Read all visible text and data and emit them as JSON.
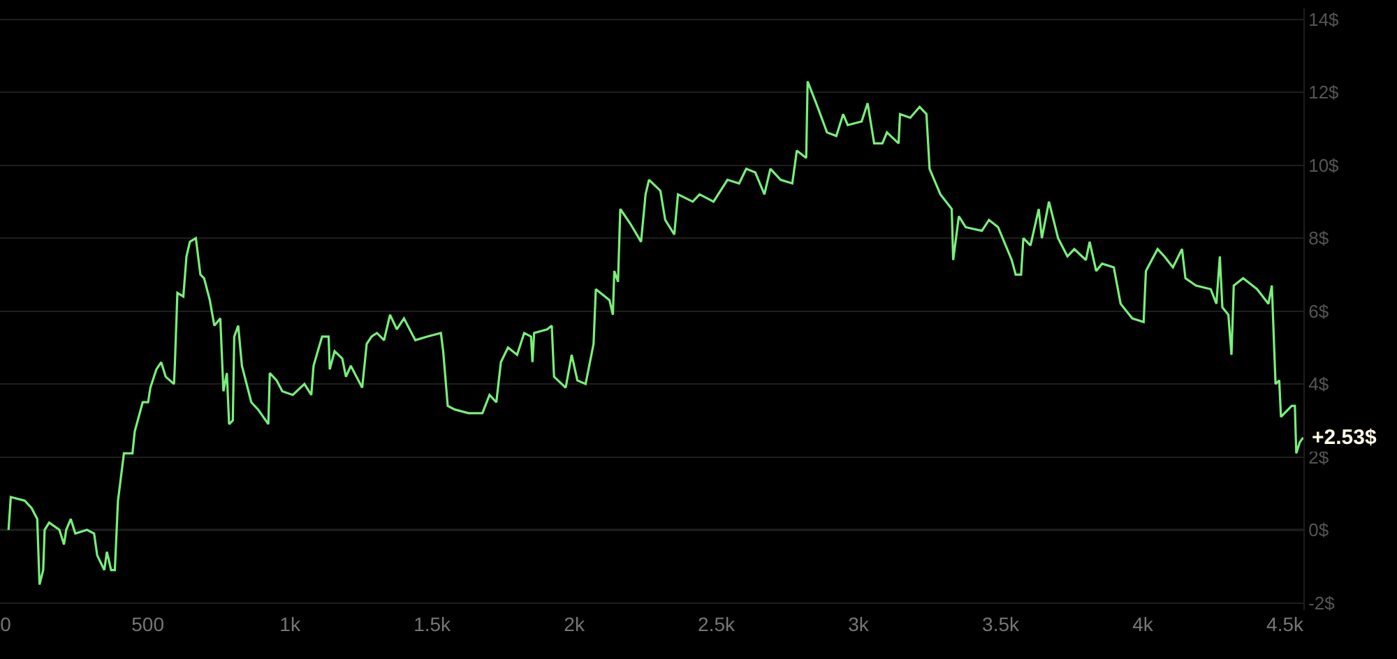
{
  "chart_data": {
    "type": "line",
    "x": [
      10,
      18,
      67,
      91,
      111,
      119,
      132,
      137,
      153,
      189,
      205,
      213,
      229,
      245,
      286,
      311,
      322,
      347,
      356,
      371,
      384,
      395,
      416,
      446,
      454,
      482,
      501,
      509,
      530,
      547,
      563,
      592,
      595,
      604,
      625,
      636,
      648,
      669,
      685,
      698,
      718,
      734,
      755,
      766,
      778,
      786,
      799,
      804,
      818,
      831,
      864,
      888,
      924,
      929,
      953,
      973,
      1010,
      1051,
      1075,
      1083,
      1113,
      1136,
      1140,
      1157,
      1184,
      1197,
      1214,
      1254,
      1270,
      1287,
      1306,
      1331,
      1352,
      1376,
      1401,
      1441,
      1482,
      1531,
      1539,
      1555,
      1580,
      1628,
      1677,
      1702,
      1726,
      1742,
      1767,
      1799,
      1824,
      1848,
      1853,
      1859,
      1905,
      1921,
      1929,
      1970,
      1991,
      2011,
      2040,
      2068,
      2076,
      2124,
      2136,
      2141,
      2154,
      2162,
      2197,
      2235,
      2251,
      2263,
      2303,
      2320,
      2352,
      2365,
      2417,
      2441,
      2490,
      2539,
      2580,
      2605,
      2637,
      2669,
      2690,
      2726,
      2767,
      2783,
      2816,
      2821,
      2856,
      2889,
      2922,
      2946,
      2962,
      3011,
      3032,
      3055,
      3084,
      3100,
      3141,
      3146,
      3182,
      3215,
      3239,
      3250,
      3288,
      3328,
      3333,
      3353,
      3377,
      3434,
      3459,
      3491,
      3539,
      3553,
      3572,
      3580,
      3605,
      3634,
      3645,
      3670,
      3702,
      3735,
      3759,
      3800,
      3813,
      3836,
      3857,
      3898,
      3922,
      3963,
      4003,
      4011,
      4052,
      4076,
      4106,
      4138,
      4150,
      4187,
      4239,
      4259,
      4271,
      4280,
      4301,
      4312,
      4320,
      4353,
      4402,
      4442,
      4454,
      4467,
      4480,
      4486,
      4524,
      4535,
      4540,
      4552,
      4564
    ],
    "series": [
      {
        "color": "#78f07a",
        "values": [
          0,
          0.9,
          0.8,
          0.6,
          0.3,
          -1.5,
          -1.1,
          0,
          0.2,
          0,
          -0.4,
          0,
          0.3,
          -0.1,
          0,
          -0.1,
          -0.7,
          -1.1,
          -0.6,
          -1.1,
          -1.1,
          0.8,
          2.1,
          2.1,
          2.7,
          3.5,
          3.5,
          3.9,
          4.4,
          4.6,
          4.2,
          4,
          4.5,
          6.5,
          6.4,
          7.5,
          7.9,
          8,
          7,
          6.9,
          6.3,
          5.6,
          5.8,
          3.8,
          4.3,
          2.9,
          3,
          5.3,
          5.6,
          4.5,
          3.5,
          3.3,
          2.9,
          4.3,
          4.1,
          3.8,
          3.7,
          4,
          3.7,
          4.5,
          5.3,
          5.3,
          4.4,
          4.9,
          4.7,
          4.2,
          4.5,
          3.9,
          5.1,
          5.3,
          5.4,
          5.2,
          5.9,
          5.5,
          5.8,
          5.2,
          5.3,
          5.4,
          4.9,
          3.4,
          3.3,
          3.2,
          3.2,
          3.7,
          3.5,
          4.6,
          5,
          4.8,
          5.4,
          5.3,
          4.6,
          5.4,
          5.5,
          5.6,
          4.2,
          3.9,
          4.8,
          4.1,
          4,
          5.1,
          6.6,
          6.3,
          5.9,
          7.1,
          6.8,
          8.8,
          8.4,
          7.9,
          9.2,
          9.6,
          9.3,
          8.5,
          8.1,
          9.2,
          9,
          9.2,
          9,
          9.6,
          9.5,
          9.9,
          9.8,
          9.2,
          9.9,
          9.6,
          9.5,
          10.4,
          10.2,
          12.3,
          11.6,
          10.9,
          10.8,
          11.4,
          11.1,
          11.2,
          11.7,
          10.6,
          10.6,
          10.9,
          10.6,
          11.4,
          11.3,
          11.6,
          11.4,
          9.9,
          9.2,
          8.8,
          7.4,
          8.6,
          8.3,
          8.2,
          8.5,
          8.3,
          7.4,
          7,
          7,
          8,
          7.8,
          8.8,
          8,
          9,
          8,
          7.5,
          7.7,
          7.4,
          7.9,
          7.1,
          7.3,
          7.2,
          6.2,
          5.8,
          5.7,
          7.1,
          7.7,
          7.5,
          7.2,
          7.7,
          6.9,
          6.7,
          6.6,
          6.2,
          7.5,
          6.1,
          5.9,
          4.8,
          6.7,
          6.9,
          6.6,
          6.2,
          6.7,
          4,
          4.1,
          3.1,
          3.4,
          3.4,
          2.1,
          2.4,
          2.53
        ]
      }
    ],
    "annotations": [
      {
        "text": "+2.53$",
        "x": 4564,
        "y": 2.53
      }
    ],
    "xlim": [
      -20,
      4565
    ],
    "xticks": [
      0,
      500,
      {
        "value": 1000,
        "label": "1k"
      },
      {
        "value": 1500,
        "label": "1.5k"
      },
      {
        "value": 2000,
        "label": "2k"
      },
      {
        "value": 2500,
        "label": "2.5k"
      },
      {
        "value": 3000,
        "label": "3k"
      },
      {
        "value": 3500,
        "label": "3.5k"
      },
      {
        "value": 4000,
        "label": "4k"
      },
      {
        "value": 4500,
        "label": "4.5k"
      }
    ],
    "ylim": [
      -2.2,
      14.3
    ],
    "yticks": [
      {
        "value": -2,
        "label": "-2$"
      },
      {
        "value": 0,
        "label": "0$"
      },
      {
        "value": 2,
        "label": "2$"
      },
      {
        "value": 4,
        "label": "4$"
      },
      {
        "value": 6,
        "label": "6$"
      },
      {
        "value": 8,
        "label": "8$"
      },
      {
        "value": 10,
        "label": "10$"
      },
      {
        "value": 12,
        "label": "12$"
      },
      {
        "value": 14,
        "label": "14$"
      }
    ],
    "ref_lines": [
      {
        "axis": "y",
        "value": 0,
        "color": "#555555"
      }
    ],
    "grid": "y",
    "marker": "none",
    "line_style": "solid"
  }
}
